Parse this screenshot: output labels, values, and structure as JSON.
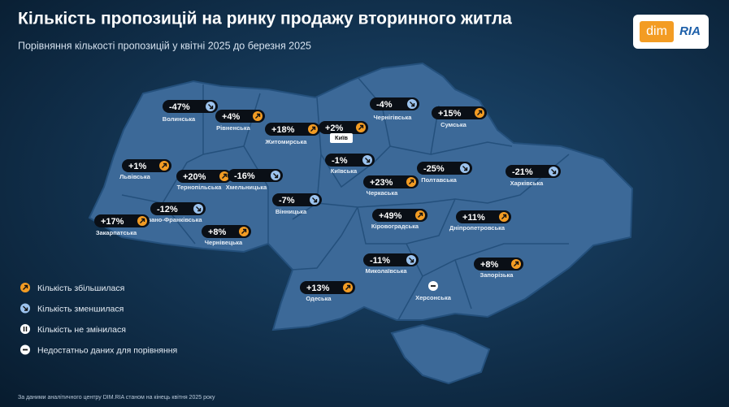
{
  "header": {
    "title": "Кількість пропозицій на ринку продажу вторинного житла",
    "subtitle": "Порівняння кількості пропозицій у квітні 2025 до березня 2025"
  },
  "logo": {
    "left": "dim",
    "right": "RIA"
  },
  "regions": [
    {
      "name": "Волинська",
      "change": "-47%",
      "trend": "down"
    },
    {
      "name": "Рівненська",
      "change": "+4%",
      "trend": "up"
    },
    {
      "name": "Житомирська",
      "change": "+18%",
      "trend": "up"
    },
    {
      "name": "Київ",
      "change": "+2%",
      "trend": "up"
    },
    {
      "name": "Чернігівська",
      "change": "-4%",
      "trend": "down"
    },
    {
      "name": "Сумська",
      "change": "+15%",
      "trend": "up"
    },
    {
      "name": "Київська",
      "change": "-1%",
      "trend": "down"
    },
    {
      "name": "Полтавська",
      "change": "-25%",
      "trend": "down"
    },
    {
      "name": "Харківська",
      "change": "-21%",
      "trend": "down"
    },
    {
      "name": "Львівська",
      "change": "+1%",
      "trend": "up"
    },
    {
      "name": "Тернопільська",
      "change": "+20%",
      "trend": "up"
    },
    {
      "name": "Хмельницька",
      "change": "-16%",
      "trend": "down"
    },
    {
      "name": "Вінницька",
      "change": "-7%",
      "trend": "down"
    },
    {
      "name": "Черкаська",
      "change": "+23%",
      "trend": "up"
    },
    {
      "name": "Івано-Франківська",
      "change": "-12%",
      "trend": "down"
    },
    {
      "name": "Закарпатська",
      "change": "+17%",
      "trend": "up"
    },
    {
      "name": "Чернівецька",
      "change": "+8%",
      "trend": "up"
    },
    {
      "name": "Кіровоградська",
      "change": "+49%",
      "trend": "up"
    },
    {
      "name": "Дніпропетровська",
      "change": "+11%",
      "trend": "up"
    },
    {
      "name": "Миколаївська",
      "change": "-11%",
      "trend": "down"
    },
    {
      "name": "Запорізька",
      "change": "+8%",
      "trend": "up"
    },
    {
      "name": "Одеська",
      "change": "+13%",
      "trend": "up"
    },
    {
      "name": "Херсонська",
      "trend": "no_data"
    }
  ],
  "legend": [
    {
      "label": "Кількість збільшилася",
      "trend": "up"
    },
    {
      "label": "Кількість зменшилася",
      "trend": "down"
    },
    {
      "label": "Кількість не змінилася",
      "trend": "unchanged"
    },
    {
      "label": "Недостатньо даних для порівняння",
      "trend": "no_data"
    }
  ],
  "footer": "За даними аналітичного центру DIM.RIA станом на кінець квітня 2025 року"
}
